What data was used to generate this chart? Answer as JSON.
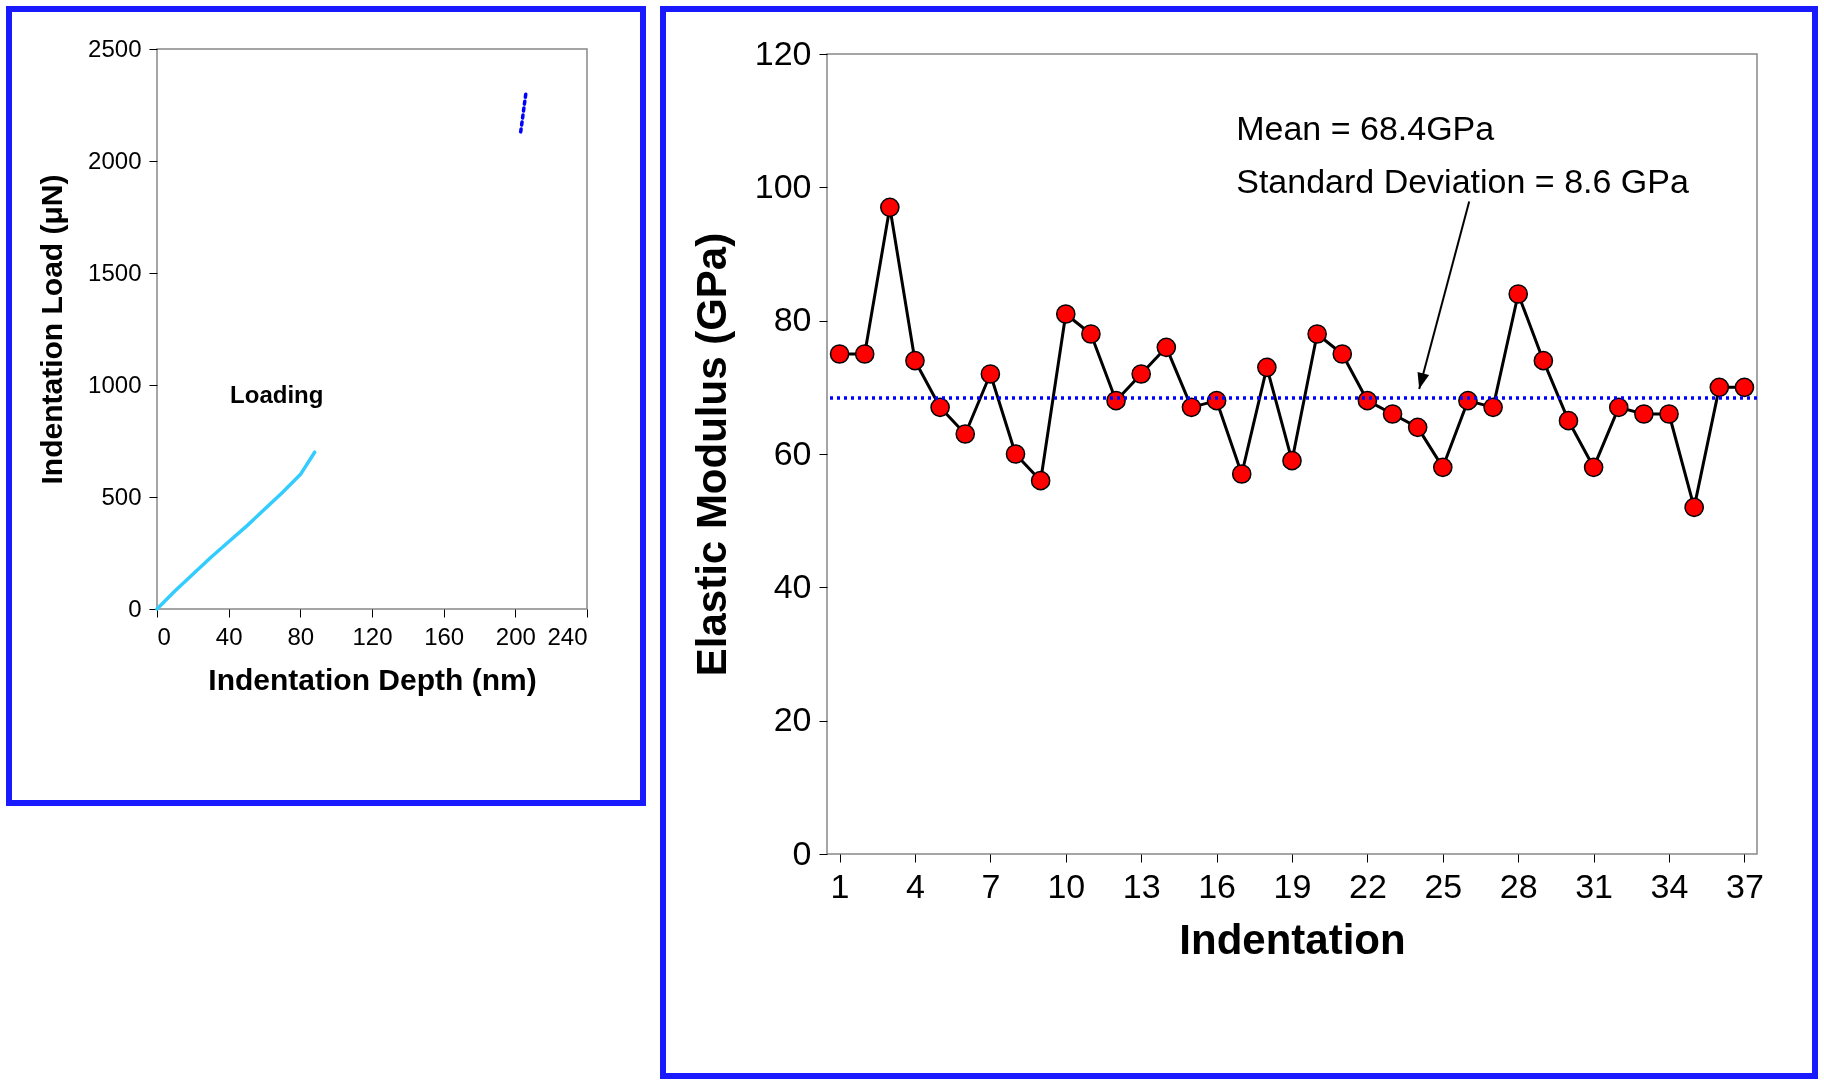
{
  "chart_data": [
    {
      "type": "line",
      "ylabel": "Indentation Load (μN)",
      "xlabel": "Indentation Depth (nm)",
      "xlim": [
        0,
        240
      ],
      "xticks": [
        0,
        40,
        80,
        120,
        160,
        200,
        240
      ],
      "ylim": [
        0,
        2500
      ],
      "yticks": [
        0,
        500,
        1000,
        1500,
        2000,
        2500
      ],
      "grid": false,
      "series": [
        {
          "color": "#33ccff",
          "line_style": "solid",
          "x": [
            0,
            5,
            10,
            20,
            30,
            40,
            50,
            60,
            70,
            80,
            88
          ],
          "values": [
            0,
            40,
            80,
            155,
            230,
            300,
            370,
            445,
            520,
            600,
            700
          ]
        },
        {
          "color": "#0000ff",
          "line_style": "dotted",
          "x": [
            203,
            206
          ],
          "values": [
            2130,
            2310
          ]
        }
      ],
      "annotations": [
        "Loading"
      ]
    },
    {
      "type": "line",
      "ylabel": "Elastic Modulus (GPa)",
      "xlabel": "Indentation",
      "xlim": [
        0.5,
        37.5
      ],
      "xticks": [
        1,
        4,
        7,
        10,
        13,
        16,
        19,
        22,
        25,
        28,
        31,
        34,
        37
      ],
      "ylim": [
        0,
        120
      ],
      "yticks": [
        0,
        20,
        40,
        60,
        80,
        100,
        120
      ],
      "grid": false,
      "marker": "circle",
      "x": [
        1,
        2,
        3,
        4,
        5,
        6,
        7,
        8,
        9,
        10,
        11,
        12,
        13,
        14,
        15,
        16,
        17,
        18,
        19,
        20,
        21,
        22,
        23,
        24,
        25,
        26,
        27,
        28,
        29,
        30,
        31,
        32,
        33,
        34,
        35,
        36,
        37
      ],
      "series": [
        {
          "color": "#000000",
          "line_style": "solid",
          "values": [
            75,
            75,
            97,
            74,
            67,
            63,
            72,
            60,
            56,
            81,
            78,
            68,
            72,
            76,
            67,
            68,
            57,
            73,
            59,
            78,
            75,
            68,
            66,
            64,
            58,
            68,
            67,
            84,
            74,
            65,
            58,
            67,
            66,
            66,
            52,
            70,
            70
          ]
        }
      ],
      "ref_lines": [
        {
          "axis": "y",
          "value": 68.4,
          "color": "#0000ff",
          "line_style": "dotted"
        }
      ],
      "annotations": [
        "Mean = 68.4GPa",
        "Standard Deviation = 8.6 GPa"
      ]
    }
  ]
}
